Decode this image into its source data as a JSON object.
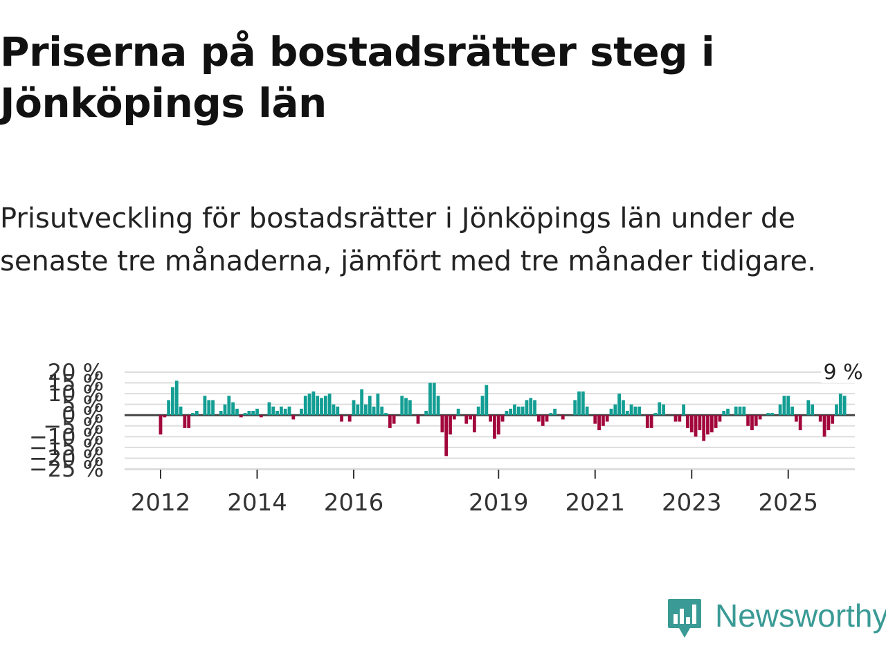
{
  "title": "Priserna på bostadsrätter steg i Jönköpings län",
  "subtitle": "Prisutveckling för bostadsrätter i Jönköpings län under de senaste tre månaderna, jämfört med tre månader tidigare.",
  "brand": {
    "name": "Newsworthy",
    "color": "#3a9a95"
  },
  "colors": {
    "positive": "#139e94",
    "negative": "#a2073c",
    "grid": "#dddddd",
    "zero": "#444444"
  },
  "chart_data": {
    "type": "bar",
    "title": "Priserna på bostadsrätter steg i Jönköpings län",
    "xlabel": "",
    "ylabel": "",
    "ylim": [
      -25,
      20
    ],
    "yticks": [
      20,
      15,
      10,
      5,
      0,
      -5,
      -10,
      -15,
      -20,
      -25
    ],
    "ytick_labels": [
      "20 %",
      "15 %",
      "10 %",
      "5 %",
      "0 %",
      "−5 %",
      "−10 %",
      "−15 %",
      "−20 %",
      "−25 %"
    ],
    "xticks": [
      {
        "label": "2012",
        "year": 2012
      },
      {
        "label": "2014",
        "year": 2014
      },
      {
        "label": "2016",
        "year": 2016
      },
      {
        "label": "2019",
        "year": 2019
      },
      {
        "label": "2021",
        "year": 2021
      },
      {
        "label": "2023",
        "year": 2023
      },
      {
        "label": "2025",
        "year": 2025
      }
    ],
    "start": {
      "year": 2012,
      "month": 1
    },
    "unit": "%",
    "values": [
      -9,
      -1,
      7,
      13,
      16,
      4,
      -6,
      -6,
      1,
      2,
      0,
      9,
      7,
      7,
      0,
      2,
      5,
      9,
      6,
      3,
      -1,
      1,
      2,
      2,
      3,
      -1,
      0,
      6,
      4,
      2,
      4,
      3,
      4,
      -2,
      0,
      3,
      9,
      10,
      11,
      9,
      8,
      9,
      10,
      5,
      4,
      -3,
      0,
      -3,
      7,
      5,
      12,
      5,
      9,
      4,
      10,
      4,
      1,
      -6,
      -4,
      0,
      9,
      8,
      7,
      0,
      -4,
      0,
      2,
      15,
      15,
      9,
      -8,
      -19,
      -9,
      -2,
      3,
      0,
      -4,
      -2,
      -8,
      4,
      9,
      14,
      -3,
      -11,
      -9,
      -3,
      2,
      3,
      5,
      4,
      4,
      7,
      8,
      7,
      -3,
      -5,
      -3,
      1,
      3,
      0,
      -2,
      0,
      0,
      7,
      11,
      11,
      4,
      0,
      -4,
      -7,
      -5,
      -3,
      3,
      5,
      10,
      7,
      2,
      5,
      4,
      4,
      0,
      -6,
      -6,
      1,
      6,
      5,
      0,
      0,
      -3,
      -3,
      5,
      -6,
      -8,
      -10,
      -7,
      -12,
      -9,
      -8,
      -6,
      -3,
      2,
      3,
      0,
      4,
      4,
      4,
      -5,
      -7,
      -5,
      -2,
      0,
      1,
      1,
      0,
      5,
      9,
      9,
      4,
      -3,
      -7,
      0,
      7,
      5,
      0,
      -3,
      -10,
      -7,
      -4,
      5,
      10,
      9
    ],
    "annotation": {
      "label": "9 %",
      "value": 9
    }
  }
}
